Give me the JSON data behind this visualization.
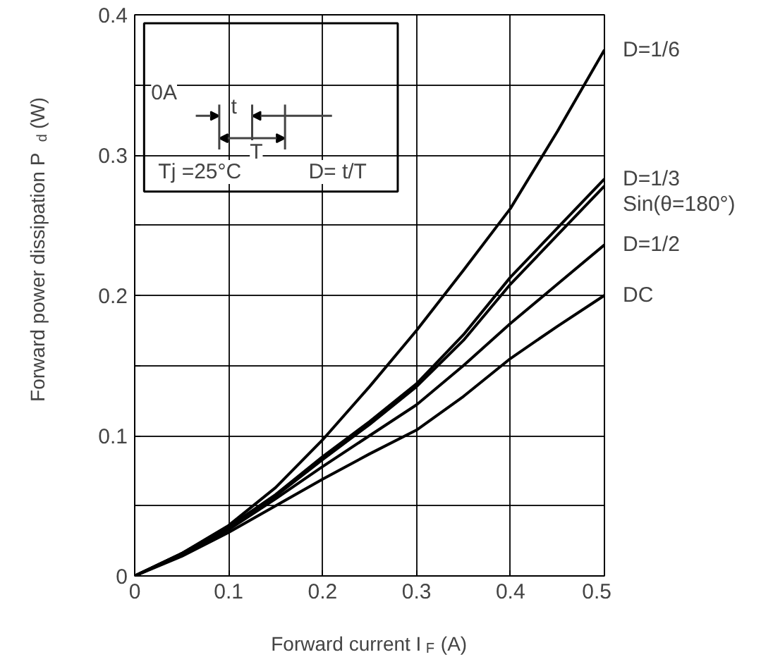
{
  "chart_data": {
    "type": "line",
    "xlabel": "Forward current I$_{F}$ (A)",
    "ylabel": "Forward power dissipation P$_{d}$ (W)",
    "x": [
      0,
      0.05,
      0.1,
      0.15,
      0.2,
      0.25,
      0.3,
      0.35,
      0.4,
      0.45,
      0.5
    ],
    "series": [
      {
        "name": "D=1/6",
        "color": "#000000",
        "values": [
          0,
          0.016,
          0.036,
          0.063,
          0.097,
          0.135,
          0.175,
          0.218,
          0.262,
          0.317,
          0.375
        ]
      },
      {
        "name": "D=1/3",
        "color": "#000000",
        "values": [
          0,
          0.016,
          0.035,
          0.058,
          0.085,
          0.11,
          0.137,
          0.172,
          0.213,
          0.248,
          0.283
        ]
      },
      {
        "name": "Sin(θ=180°)",
        "color": "#000000",
        "values": [
          0,
          0.016,
          0.035,
          0.057,
          0.083,
          0.108,
          0.135,
          0.168,
          0.208,
          0.243,
          0.278
        ]
      },
      {
        "name": "D=1/2",
        "color": "#000000",
        "values": [
          0,
          0.015,
          0.033,
          0.055,
          0.078,
          0.1,
          0.122,
          0.15,
          0.18,
          0.208,
          0.236
        ]
      },
      {
        "name": "DC",
        "color": "#000000",
        "values": [
          0,
          0.014,
          0.031,
          0.05,
          0.069,
          0.087,
          0.104,
          0.128,
          0.155,
          0.178,
          0.2
        ]
      }
    ],
    "xlim": [
      0,
      0.5
    ],
    "ylim": [
      0,
      0.4
    ],
    "xticks": [
      0,
      0.1,
      0.2,
      0.3,
      0.4,
      0.5
    ],
    "yticks": [
      0,
      {
        "value": 0.05,
        "label": null
      },
      0.1,
      {
        "value": 0.15,
        "label": null
      },
      0.2,
      {
        "value": 0.25,
        "label": null
      },
      0.3,
      {
        "value": 0.35,
        "label": null
      },
      0.4
    ],
    "grid": true,
    "annotations": [
      "0A",
      "t",
      "T",
      "Tj =25°C",
      "D= t/T"
    ]
  }
}
